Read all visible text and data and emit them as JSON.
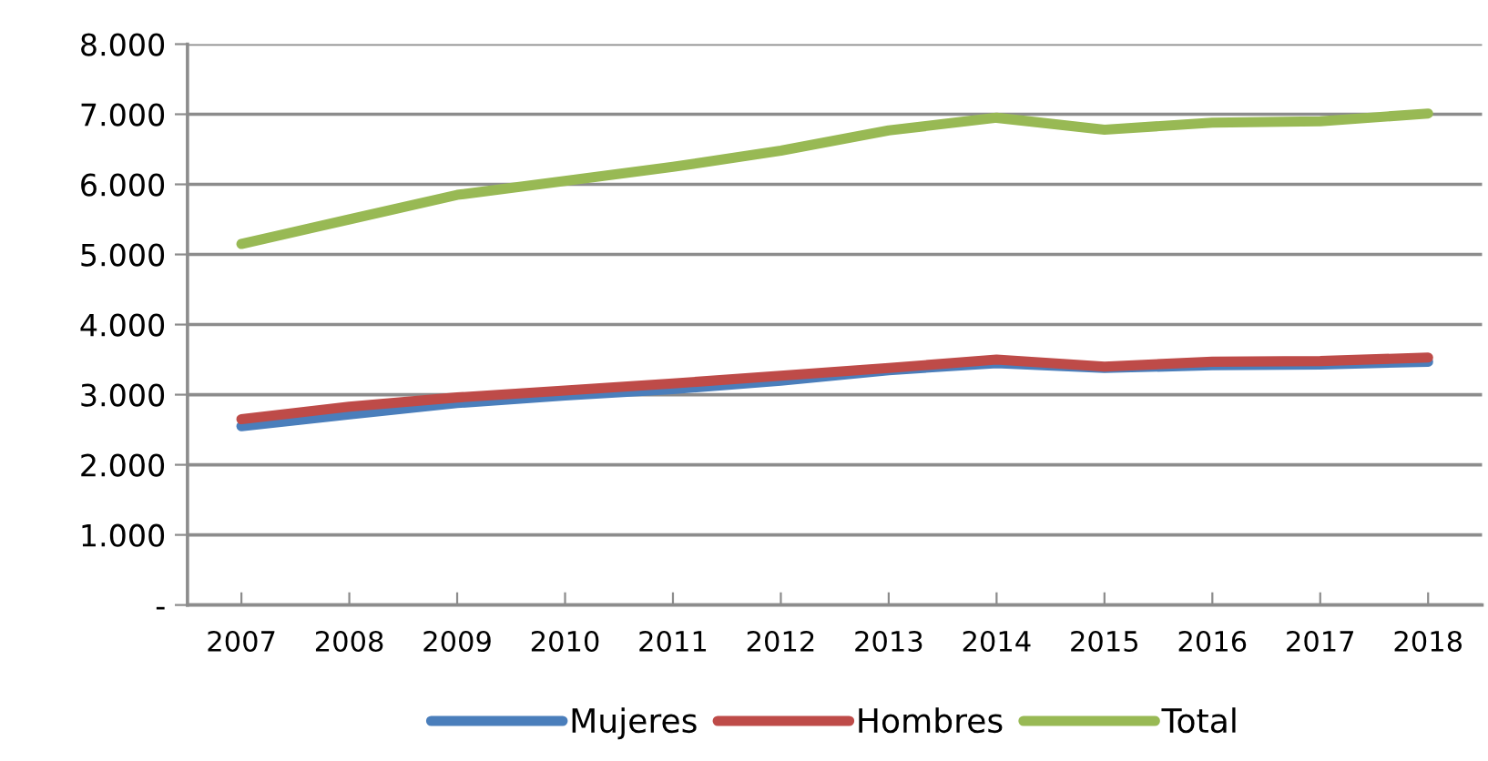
{
  "chart_data": {
    "type": "line",
    "categories": [
      "2007",
      "2008",
      "2009",
      "2010",
      "2011",
      "2012",
      "2013",
      "2014",
      "2015",
      "2016",
      "2017",
      "2018"
    ],
    "series": [
      {
        "name": "Mujeres",
        "color": "#4a7ebb",
        "values": [
          2550,
          2720,
          2880,
          2990,
          3080,
          3200,
          3350,
          3450,
          3380,
          3420,
          3430,
          3470
        ]
      },
      {
        "name": "Hombres",
        "color": "#be4b48",
        "values": [
          2650,
          2830,
          2960,
          3060,
          3160,
          3270,
          3380,
          3500,
          3400,
          3470,
          3480,
          3530
        ]
      },
      {
        "name": "Total",
        "color": "#98b954",
        "values": [
          5150,
          5500,
          5850,
          6050,
          6250,
          6480,
          6770,
          6950,
          6780,
          6880,
          6900,
          7010
        ]
      }
    ],
    "ylim": [
      0,
      8000
    ],
    "yticks": [
      {
        "value": 0,
        "label": "-"
      },
      {
        "value": 1000,
        "label": "1.000"
      },
      {
        "value": 2000,
        "label": "2.000"
      },
      {
        "value": 3000,
        "label": "3.000"
      },
      {
        "value": 4000,
        "label": "4.000"
      },
      {
        "value": 5000,
        "label": "5.000"
      },
      {
        "value": 6000,
        "label": "6.000"
      },
      {
        "value": 7000,
        "label": "7.000"
      },
      {
        "value": 8000,
        "label": "8.000"
      }
    ],
    "grid": "y",
    "legend": "bottom",
    "marker": "none",
    "line_style": "solid"
  }
}
